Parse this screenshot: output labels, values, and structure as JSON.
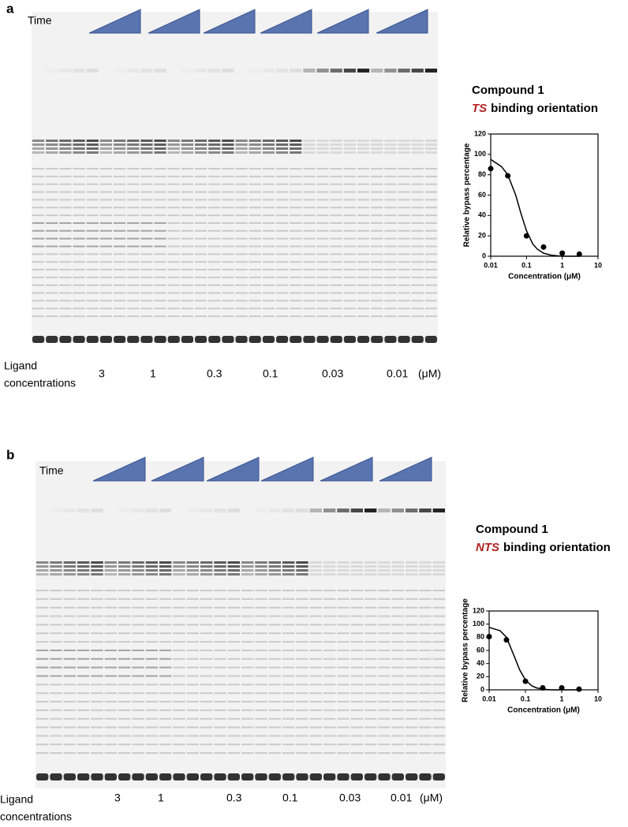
{
  "panels": [
    {
      "label": "a",
      "time_label": "Time",
      "ligand_label": "Ligand",
      "ligand_label_2": "concentrations",
      "concentrations": [
        "3",
        "1",
        "0.3",
        "0.1",
        "0.03",
        "0.01"
      ],
      "unit": "(μM)",
      "compound": "Compound 1",
      "orientation": "TS",
      "orientation_suffix": "binding orientation"
    },
    {
      "label": "b",
      "time_label": "Time",
      "ligand_label": "Ligand",
      "ligand_label_2": "concentrations",
      "concentrations": [
        "3",
        "1",
        "0.3",
        "0.1",
        "0.03",
        "0.01"
      ],
      "unit": "(μM)",
      "compound": "Compound 1",
      "orientation": "NTS",
      "orientation_suffix": "binding orientation"
    }
  ],
  "chart_data": [
    {
      "type": "scatter",
      "x": [
        0.01,
        0.03,
        0.1,
        0.3,
        1,
        3
      ],
      "values": [
        86,
        79,
        20,
        9,
        3,
        2
      ],
      "fit": {
        "x": [
          0.01,
          0.02,
          0.03,
          0.05,
          0.07,
          0.1,
          0.15,
          0.2,
          0.3,
          0.5,
          1,
          3
        ],
        "values": [
          95,
          88,
          80,
          60,
          42,
          25,
          12,
          7,
          3,
          1,
          0,
          0
        ]
      },
      "xlabel": "Concentration (μM)",
      "ylabel": "Relative bypass percentage",
      "xlim": [
        0.01,
        10
      ],
      "ylim": [
        0,
        120
      ],
      "xticks": [
        0.01,
        0.1,
        1,
        10
      ],
      "yticks": [
        0,
        20,
        40,
        60,
        80,
        100,
        120
      ],
      "log_x": true,
      "color": "#000000"
    },
    {
      "type": "scatter",
      "x": [
        0.01,
        0.03,
        0.1,
        0.3,
        1,
        3
      ],
      "values": [
        81,
        76,
        13,
        3,
        3,
        1
      ],
      "fit": {
        "x": [
          0.01,
          0.02,
          0.03,
          0.05,
          0.07,
          0.1,
          0.15,
          0.2,
          0.3,
          0.5,
          1,
          3
        ],
        "values": [
          95,
          90,
          80,
          50,
          30,
          15,
          6,
          3,
          1,
          0,
          0,
          0
        ]
      },
      "xlabel": "Concentration (μM)",
      "ylabel": "Relative bypass percentage",
      "xlim": [
        0.01,
        10
      ],
      "ylim": [
        0,
        120
      ],
      "xticks": [
        0.01,
        0.1,
        1,
        10
      ],
      "yticks": [
        0,
        20,
        40,
        60,
        80,
        100,
        120
      ],
      "log_x": true,
      "color": "#000000"
    }
  ]
}
